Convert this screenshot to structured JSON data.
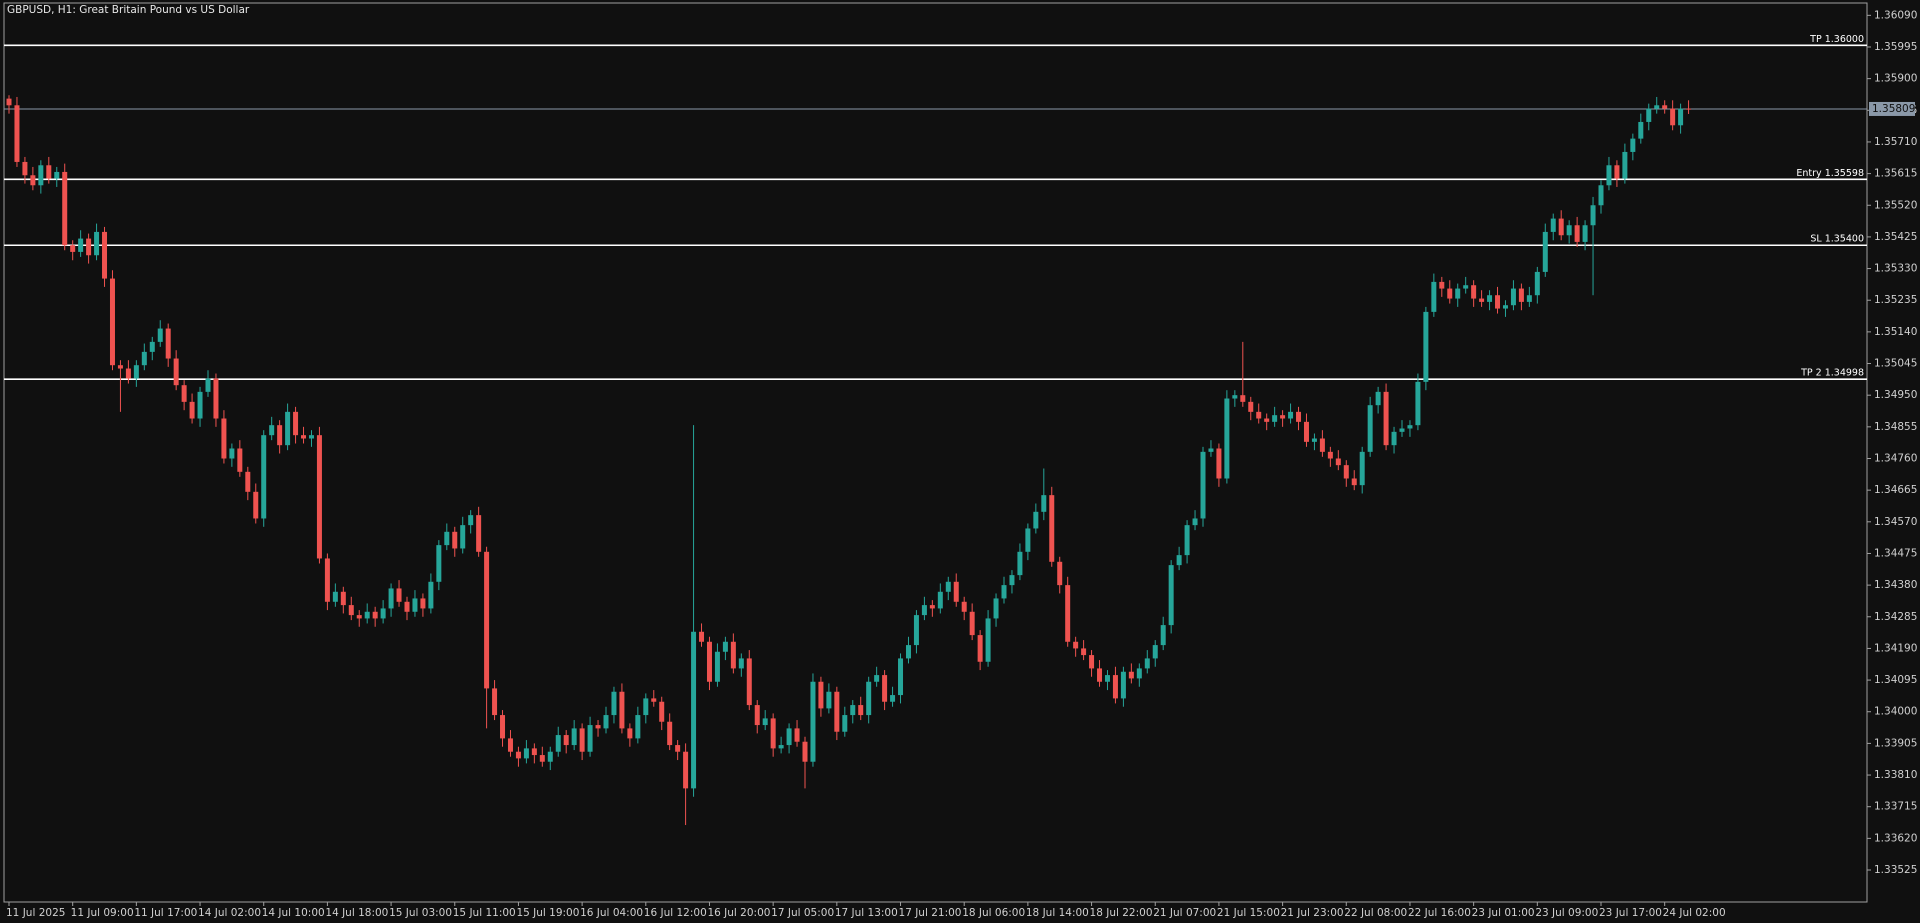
{
  "chart_data": {
    "type": "candlestick",
    "title": "GBPUSD, H1:  Great Britain Pound vs US Dollar",
    "up_color": "#26a69a",
    "down_color": "#ef5350",
    "level_color": "#ffffff",
    "last_price": 1.35809,
    "last_price_color": "#8a98a8",
    "ylim": [
      1.33429,
      1.36127
    ],
    "yticks": [
      {
        "value": 1.3609,
        "label": "1.36090"
      },
      1.35995,
      {
        "value": 1.359,
        "label": "1.35900"
      },
      1.35805,
      {
        "value": 1.3571,
        "label": "1.35710"
      },
      1.35615,
      {
        "value": 1.3552,
        "label": "1.35520"
      },
      1.35425,
      {
        "value": 1.3533,
        "label": "1.35330"
      },
      1.35235,
      {
        "value": 1.3514,
        "label": "1.35140"
      },
      1.35045,
      {
        "value": 1.3495,
        "label": "1.34950"
      },
      1.34855,
      {
        "value": 1.3476,
        "label": "1.34760"
      },
      1.34665,
      {
        "value": 1.3457,
        "label": "1.34570"
      },
      1.34475,
      {
        "value": 1.3438,
        "label": "1.34380"
      },
      1.34285,
      {
        "value": 1.3419,
        "label": "1.34190"
      },
      1.34095,
      {
        "value": 1.34,
        "label": "1.34000"
      },
      1.33905,
      {
        "value": 1.3381,
        "label": "1.33810"
      },
      1.33715,
      {
        "value": 1.3362,
        "label": "1.33620"
      },
      1.33525
    ],
    "levels": [
      {
        "label": "TP 1.36000",
        "value": 1.36
      },
      {
        "label": "Entry 1.35598",
        "value": 1.35598
      },
      {
        "label": "SL 1.35400",
        "value": 1.354
      },
      {
        "label": "TP 2 1.34998",
        "value": 1.34998
      }
    ],
    "categories": [
      "11 Jul 2025",
      null,
      null,
      null,
      null,
      null,
      null,
      null,
      "11 Jul 09:00",
      null,
      null,
      null,
      null,
      null,
      null,
      null,
      "11 Jul 17:00",
      null,
      null,
      null,
      null,
      null,
      null,
      null,
      "14 Jul 02:00",
      null,
      null,
      null,
      null,
      null,
      null,
      null,
      "14 Jul 10:00",
      null,
      null,
      null,
      null,
      null,
      null,
      null,
      "14 Jul 18:00",
      null,
      null,
      null,
      null,
      null,
      null,
      null,
      "15 Jul 03:00",
      null,
      null,
      null,
      null,
      null,
      null,
      null,
      "15 Jul 11:00",
      null,
      null,
      null,
      null,
      null,
      null,
      null,
      "15 Jul 19:00",
      null,
      null,
      null,
      null,
      null,
      null,
      null,
      "16 Jul 04:00",
      null,
      null,
      null,
      null,
      null,
      null,
      null,
      "16 Jul 12:00",
      null,
      null,
      null,
      null,
      null,
      null,
      null,
      "16 Jul 20:00",
      null,
      null,
      null,
      null,
      null,
      null,
      null,
      "17 Jul 05:00",
      null,
      null,
      null,
      null,
      null,
      null,
      null,
      "17 Jul 13:00",
      null,
      null,
      null,
      null,
      null,
      null,
      null,
      "17 Jul 21:00",
      null,
      null,
      null,
      null,
      null,
      null,
      null,
      "18 Jul 06:00",
      null,
      null,
      null,
      null,
      null,
      null,
      null,
      "18 Jul 14:00",
      null,
      null,
      null,
      null,
      null,
      null,
      null,
      "18 Jul 22:00",
      null,
      null,
      null,
      null,
      null,
      null,
      null,
      "21 Jul 07:00",
      null,
      null,
      null,
      null,
      null,
      null,
      null,
      "21 Jul 15:00",
      null,
      null,
      null,
      null,
      null,
      null,
      null,
      "21 Jul 23:00",
      null,
      null,
      null,
      null,
      null,
      null,
      null,
      "22 Jul 08:00",
      null,
      null,
      null,
      null,
      null,
      null,
      null,
      "22 Jul 16:00",
      null,
      null,
      null,
      null,
      null,
      null,
      null,
      "23 Jul 01:00",
      null,
      null,
      null,
      null,
      null,
      null,
      null,
      "23 Jul 09:00",
      null,
      null,
      null,
      null,
      null,
      null,
      null,
      "23 Jul 17:00",
      null,
      null,
      null,
      null,
      null,
      null,
      null,
      "24 Jul 02:00",
      null,
      null,
      null
    ],
    "open": [
      1.3584,
      1.3582,
      1.3565,
      1.3561,
      1.3558,
      1.3564,
      1.356,
      1.3562,
      1.354,
      1.3538,
      1.3542,
      1.3537,
      1.3544,
      1.353,
      1.3504,
      1.3503,
      1.35,
      1.3504,
      1.3508,
      1.3511,
      1.3515,
      1.3506,
      1.3498,
      1.3493,
      1.3488,
      1.3496,
      1.35,
      1.3488,
      1.3476,
      1.3479,
      1.3472,
      1.3466,
      1.3458,
      1.3483,
      1.3486,
      1.348,
      1.349,
      1.3483,
      1.3482,
      1.3483,
      1.3446,
      1.3433,
      1.3436,
      1.3432,
      1.3429,
      1.3428,
      1.343,
      1.3428,
      1.3431,
      1.3437,
      1.3433,
      1.343,
      1.3434,
      1.3431,
      1.3439,
      1.345,
      1.3454,
      1.3449,
      1.3456,
      1.3459,
      1.3448,
      1.3407,
      1.3399,
      1.3392,
      1.3388,
      1.3386,
      1.3389,
      1.3387,
      1.3385,
      1.3388,
      1.3393,
      1.339,
      1.3395,
      1.3388,
      1.3396,
      1.3395,
      1.3399,
      1.3406,
      1.3395,
      1.3392,
      1.3399,
      1.3404,
      1.3403,
      1.3397,
      1.339,
      1.3388,
      1.3377,
      1.3424,
      1.3421,
      1.3409,
      1.3418,
      1.3421,
      1.3413,
      1.3416,
      1.3402,
      1.3396,
      1.3398,
      1.3389,
      1.339,
      1.3395,
      1.3391,
      1.3385,
      1.3409,
      1.3401,
      1.3406,
      1.3394,
      1.3399,
      1.3402,
      1.3399,
      1.3409,
      1.3411,
      1.3403,
      1.3405,
      1.3416,
      1.342,
      1.3429,
      1.3432,
      1.3431,
      1.3436,
      1.3439,
      1.3433,
      1.343,
      1.3423,
      1.3415,
      1.3428,
      1.3434,
      1.3438,
      1.3441,
      1.3448,
      1.3455,
      1.346,
      1.3465,
      1.3445,
      1.3438,
      1.3421,
      1.3419,
      1.3417,
      1.3413,
      1.3409,
      1.3411,
      1.3404,
      1.3412,
      1.341,
      1.3413,
      1.3416,
      1.342,
      1.3426,
      1.3444,
      1.3447,
      1.3456,
      1.3458,
      1.3478,
      1.3479,
      1.347,
      1.3494,
      1.3495,
      1.3493,
      1.349,
      1.3488,
      1.3487,
      1.3489,
      1.3488,
      1.349,
      1.3487,
      1.3481,
      1.3482,
      1.3478,
      1.3476,
      1.3474,
      1.347,
      1.3468,
      1.3478,
      1.3492,
      1.3496,
      1.348,
      1.3484,
      1.3485,
      1.3486,
      1.3499,
      1.352,
      1.3529,
      1.3527,
      1.3524,
      1.3527,
      1.3528,
      1.3524,
      1.3523,
      1.3525,
      1.3521,
      1.3522,
      1.3527,
      1.3523,
      1.3525,
      1.3532,
      1.3544,
      1.3548,
      1.3543,
      1.3546,
      1.3541,
      1.3546,
      1.3552,
      1.3558,
      1.3564,
      1.356,
      1.3568,
      1.3572,
      1.3577,
      1.3581,
      1.3582,
      1.3581,
      1.3576,
      1.3581
    ],
    "high": [
      1.3585,
      1.35845,
      1.35665,
      1.35635,
      1.35655,
      1.35665,
      1.35635,
      1.35645,
      1.35415,
      1.35445,
      1.35435,
      1.35465,
      1.35455,
      1.35325,
      1.35055,
      1.35055,
      1.35055,
      1.35105,
      1.35125,
      1.35175,
      1.35165,
      1.35085,
      1.34995,
      1.34955,
      1.34975,
      1.35025,
      1.35015,
      1.34905,
      1.34805,
      1.34815,
      1.34735,
      1.34685,
      1.34845,
      1.34885,
      1.34875,
      1.34925,
      1.34915,
      1.34855,
      1.34845,
      1.34855,
      1.34475,
      1.34385,
      1.34375,
      1.34345,
      1.34305,
      1.34325,
      1.34315,
      1.34335,
      1.34385,
      1.34395,
      1.34345,
      1.34365,
      1.34355,
      1.34415,
      1.34515,
      1.34565,
      1.34555,
      1.34585,
      1.34605,
      1.34615,
      1.34495,
      1.34095,
      1.34005,
      1.33945,
      1.33895,
      1.33915,
      1.33905,
      1.33895,
      1.33895,
      1.33955,
      1.33945,
      1.33975,
      1.33965,
      1.33985,
      1.33975,
      1.34015,
      1.34075,
      1.34085,
      1.33965,
      1.34015,
      1.34055,
      1.34065,
      1.34045,
      1.33995,
      1.33915,
      1.33905,
      1.3486,
      1.34265,
      1.34225,
      1.34205,
      1.34225,
      1.34235,
      1.34175,
      1.34185,
      1.34035,
      1.34005,
      1.33995,
      1.33925,
      1.33965,
      1.33975,
      1.33925,
      1.34115,
      1.34105,
      1.34085,
      1.34075,
      1.34015,
      1.34035,
      1.34045,
      1.34105,
      1.34135,
      1.34125,
      1.34075,
      1.34175,
      1.34225,
      1.34305,
      1.34345,
      1.34335,
      1.34385,
      1.34405,
      1.34415,
      1.34345,
      1.34325,
      1.34245,
      1.34305,
      1.34355,
      1.34405,
      1.34425,
      1.34505,
      1.34565,
      1.34625,
      1.3473,
      1.34675,
      1.34465,
      1.34405,
      1.34225,
      1.34215,
      1.34185,
      1.34155,
      1.34125,
      1.34135,
      1.34135,
      1.34145,
      1.34145,
      1.34185,
      1.34215,
      1.34285,
      1.34455,
      1.34495,
      1.34575,
      1.34605,
      1.34795,
      1.34815,
      1.34805,
      1.34965,
      1.34965,
      1.3511,
      1.34945,
      1.34925,
      1.34895,
      1.34915,
      1.34905,
      1.34925,
      1.34915,
      1.34895,
      1.34835,
      1.34845,
      1.34795,
      1.34785,
      1.34755,
      1.34725,
      1.34795,
      1.34945,
      1.34975,
      1.34985,
      1.34855,
      1.34875,
      1.34875,
      1.35015,
      1.35215,
      1.35315,
      1.35305,
      1.35295,
      1.35285,
      1.35305,
      1.35295,
      1.35265,
      1.35265,
      1.35275,
      1.35235,
      1.35295,
      1.35285,
      1.35275,
      1.35335,
      1.35465,
      1.35495,
      1.35505,
      1.35475,
      1.35485,
      1.35475,
      1.35545,
      1.35595,
      1.35665,
      1.35655,
      1.35705,
      1.35735,
      1.35795,
      1.35825,
      1.35845,
      1.35835,
      1.35835,
      1.35825,
      1.35835
    ],
    "low": [
      1.35795,
      1.35635,
      1.35585,
      1.35565,
      1.35555,
      1.35585,
      1.35575,
      1.35385,
      1.35355,
      1.35365,
      1.35345,
      1.35355,
      1.35275,
      1.35025,
      1.349,
      1.34985,
      1.34975,
      1.35025,
      1.35055,
      1.35095,
      1.35035,
      1.34965,
      1.34905,
      1.34865,
      1.34855,
      1.34945,
      1.34855,
      1.34745,
      1.34735,
      1.34705,
      1.34635,
      1.34565,
      1.34555,
      1.34815,
      1.34775,
      1.34785,
      1.34805,
      1.34805,
      1.34795,
      1.34445,
      1.34305,
      1.34315,
      1.34295,
      1.34275,
      1.34255,
      1.34265,
      1.34255,
      1.34265,
      1.34285,
      1.34315,
      1.34275,
      1.34285,
      1.34285,
      1.34295,
      1.34365,
      1.34485,
      1.34465,
      1.34475,
      1.34535,
      1.34465,
      1.3395,
      1.33975,
      1.33895,
      1.33865,
      1.33835,
      1.33845,
      1.33845,
      1.33835,
      1.33825,
      1.33865,
      1.33875,
      1.33885,
      1.33855,
      1.33865,
      1.33925,
      1.33935,
      1.33965,
      1.33935,
      1.33895,
      1.33905,
      1.33965,
      1.34015,
      1.33945,
      1.33885,
      1.33855,
      1.3366,
      1.33745,
      1.34195,
      1.34065,
      1.34075,
      1.34155,
      1.34115,
      1.34105,
      1.34005,
      1.33935,
      1.33945,
      1.33865,
      1.33875,
      1.33875,
      1.33895,
      1.3377,
      1.33835,
      1.33985,
      1.33995,
      1.33915,
      1.33925,
      1.33965,
      1.33975,
      1.33965,
      1.34075,
      1.34005,
      1.34015,
      1.34025,
      1.34145,
      1.34175,
      1.34275,
      1.34285,
      1.34295,
      1.34335,
      1.34315,
      1.34275,
      1.34215,
      1.34125,
      1.34135,
      1.34255,
      1.34325,
      1.34355,
      1.34395,
      1.34455,
      1.34535,
      1.34575,
      1.34435,
      1.34355,
      1.34195,
      1.34165,
      1.34155,
      1.34105,
      1.34075,
      1.34065,
      1.34025,
      1.34015,
      1.34085,
      1.34075,
      1.34115,
      1.34135,
      1.34185,
      1.34235,
      1.34425,
      1.34445,
      1.34545,
      1.34555,
      1.34765,
      1.34675,
      1.34685,
      1.34915,
      1.34915,
      1.34875,
      1.34865,
      1.34845,
      1.34855,
      1.34855,
      1.34865,
      1.34845,
      1.34795,
      1.34785,
      1.34765,
      1.34735,
      1.34725,
      1.34675,
      1.34665,
      1.34655,
      1.34765,
      1.34895,
      1.34785,
      1.34775,
      1.34825,
      1.34825,
      1.34845,
      1.34965,
      1.35185,
      1.35245,
      1.35225,
      1.35215,
      1.35255,
      1.35215,
      1.35215,
      1.35205,
      1.35195,
      1.35185,
      1.35205,
      1.35205,
      1.35215,
      1.35225,
      1.35305,
      1.35415,
      1.35415,
      1.35405,
      1.35395,
      1.35385,
      1.3525,
      1.35495,
      1.35565,
      1.35575,
      1.35585,
      1.35655,
      1.35705,
      1.35745,
      1.35795,
      1.35795,
      1.35745,
      1.35735,
      1.35794
    ],
    "close": [
      1.3582,
      1.3565,
      1.3561,
      1.3558,
      1.3564,
      1.356,
      1.3562,
      1.354,
      1.3538,
      1.3542,
      1.3537,
      1.3544,
      1.353,
      1.3504,
      1.3503,
      1.35,
      1.3504,
      1.3508,
      1.3511,
      1.3515,
      1.3506,
      1.3498,
      1.3493,
      1.3488,
      1.3496,
      1.35,
      1.3488,
      1.3476,
      1.3479,
      1.3472,
      1.3466,
      1.3458,
      1.3483,
      1.3486,
      1.348,
      1.349,
      1.3483,
      1.3482,
      1.3483,
      1.3446,
      1.3433,
      1.3436,
      1.3432,
      1.3429,
      1.3428,
      1.343,
      1.3428,
      1.3431,
      1.3437,
      1.3433,
      1.343,
      1.3434,
      1.3431,
      1.3439,
      1.345,
      1.3454,
      1.3449,
      1.3456,
      1.3459,
      1.3448,
      1.3407,
      1.3399,
      1.3392,
      1.3388,
      1.3386,
      1.3389,
      1.3387,
      1.3385,
      1.3388,
      1.3393,
      1.339,
      1.3395,
      1.3388,
      1.3396,
      1.3395,
      1.3399,
      1.3406,
      1.3395,
      1.3392,
      1.3399,
      1.3404,
      1.3403,
      1.3397,
      1.339,
      1.3388,
      1.3377,
      1.3424,
      1.3421,
      1.3409,
      1.3418,
      1.3421,
      1.3413,
      1.3416,
      1.3402,
      1.3396,
      1.3398,
      1.3389,
      1.339,
      1.3395,
      1.3391,
      1.3385,
      1.3409,
      1.3401,
      1.3406,
      1.3394,
      1.3399,
      1.3402,
      1.3399,
      1.3409,
      1.3411,
      1.3403,
      1.3405,
      1.3416,
      1.342,
      1.3429,
      1.3432,
      1.3431,
      1.3436,
      1.3439,
      1.3433,
      1.343,
      1.3423,
      1.3415,
      1.3428,
      1.3434,
      1.3438,
      1.3441,
      1.3448,
      1.3455,
      1.346,
      1.3465,
      1.3445,
      1.3438,
      1.3421,
      1.3419,
      1.3417,
      1.3413,
      1.3409,
      1.3411,
      1.3404,
      1.3412,
      1.341,
      1.3413,
      1.3416,
      1.342,
      1.3426,
      1.3444,
      1.3447,
      1.3456,
      1.3458,
      1.3478,
      1.3479,
      1.347,
      1.3494,
      1.3495,
      1.3493,
      1.349,
      1.3488,
      1.3487,
      1.3489,
      1.3488,
      1.349,
      1.3487,
      1.3481,
      1.3482,
      1.3478,
      1.3476,
      1.3474,
      1.347,
      1.3468,
      1.3478,
      1.3492,
      1.3496,
      1.348,
      1.3484,
      1.3485,
      1.3486,
      1.3499,
      1.352,
      1.3529,
      1.3527,
      1.3524,
      1.3527,
      1.3528,
      1.3524,
      1.3523,
      1.3525,
      1.3521,
      1.3522,
      1.3527,
      1.3523,
      1.3525,
      1.3532,
      1.3544,
      1.3548,
      1.3543,
      1.3546,
      1.3541,
      1.3546,
      1.3552,
      1.3558,
      1.3564,
      1.356,
      1.3568,
      1.3572,
      1.3577,
      1.3581,
      1.3582,
      1.3581,
      1.3576,
      1.3581,
      1.35809
    ]
  }
}
